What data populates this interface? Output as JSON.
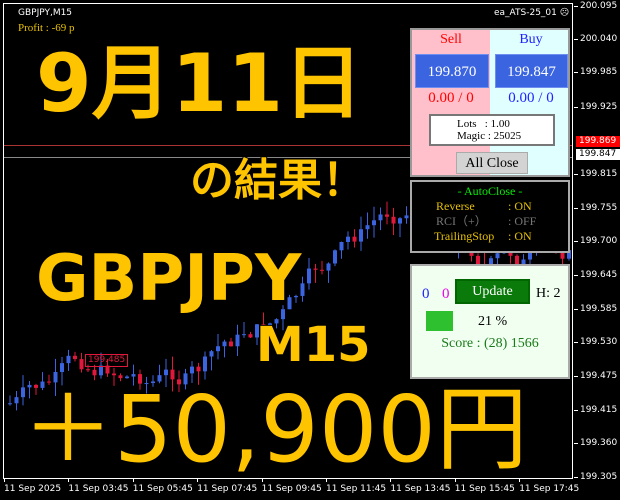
{
  "header": {
    "symbol": "GBPJPY,M15",
    "ea_name": "ea_ATS-25_01",
    "ea_icon": "sad-face-icon"
  },
  "price_axis": [
    "200.095",
    "200.040",
    "199.985",
    "199.925",
    "199.815",
    "199.755",
    "199.700",
    "199.645",
    "199.585",
    "199.530",
    "199.475",
    "199.415",
    "199.360",
    "199.305"
  ],
  "price_tags": {
    "bid": "199.869",
    "ask": "199.847"
  },
  "time_axis": [
    "11 Sep 2025",
    "11 Sep 03:45",
    "11 Sep 05:45",
    "11 Sep 07:45",
    "11 Sep 09:45",
    "11 Sep 11:45",
    "11 Sep 13:45",
    "11 Sep 15:45",
    "11 Sep 17:45"
  ],
  "chart_label": "199.485",
  "profit": "Profit : -69 p",
  "overlay": {
    "date": "9月11日",
    "result": "の結果！",
    "pair": "GBPJPY",
    "timeframe": "M15",
    "amount": "＋50,900円"
  },
  "trade_panel": {
    "sell_label": "Sell",
    "buy_label": "Buy",
    "sell_price": "199.870",
    "buy_price": "199.847",
    "sell_pl": "0.00 / 0",
    "buy_pl": "0.00 / 0",
    "lots": "Lots   : 1.00",
    "magic": "Magic : 25025",
    "all_close": "All Close"
  },
  "autoclose": {
    "title": "- AutoClose -",
    "rows": [
      {
        "label": "Reverse",
        "value": ": ON"
      },
      {
        "label": "RCI（+）",
        "value": ": OFF"
      },
      {
        "label": "TrailingStop",
        "value": ": ON"
      }
    ]
  },
  "status_panel": {
    "count_blue": "0",
    "count_magenta": "0",
    "update": "Update",
    "h": "H: 2",
    "percent": "21 %",
    "progress": 0.21,
    "score": "Score : (28) 1566"
  },
  "colors": {
    "bull": "#3b64e0",
    "bear": "#e0193c",
    "overlay_text": "#ffc400",
    "sell_bg": "#ffc0cb",
    "buy_bg": "#e0ffff"
  }
}
